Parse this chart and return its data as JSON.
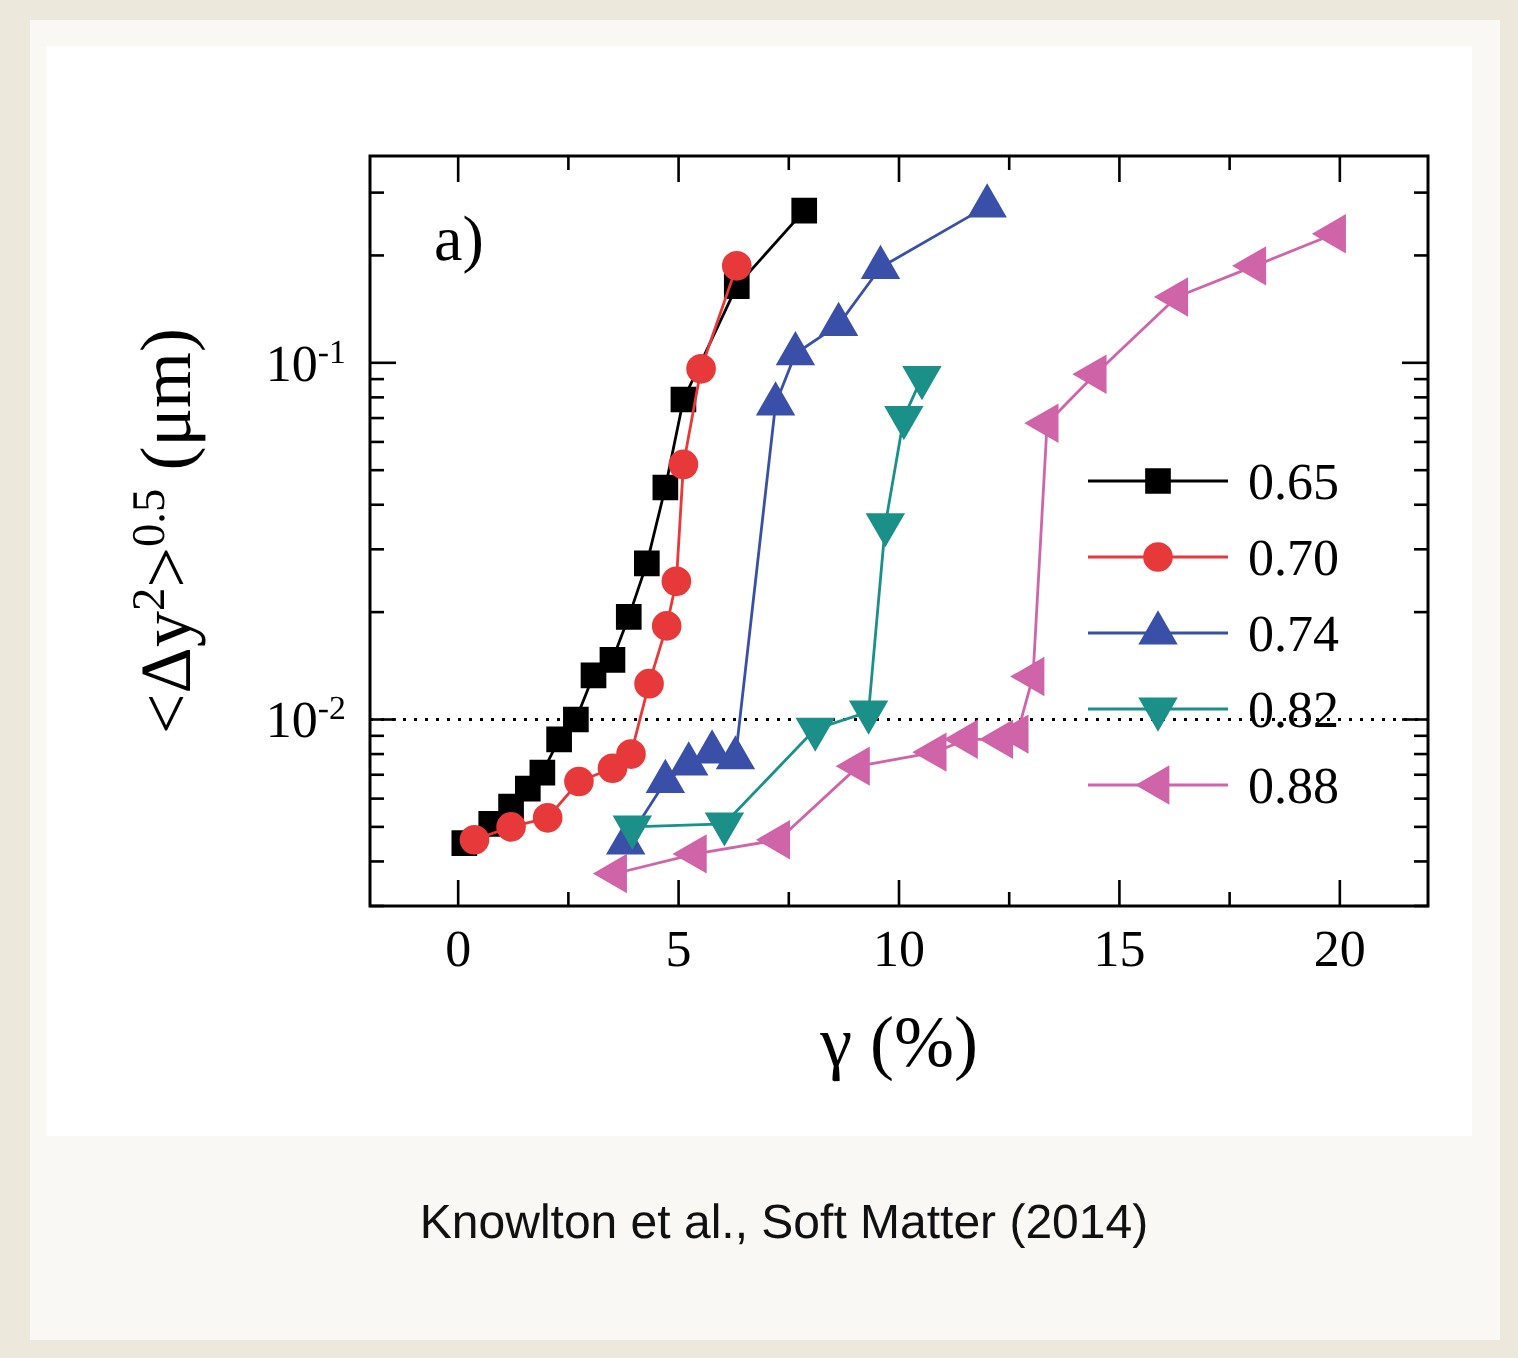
{
  "chart_data": {
    "type": "line",
    "xlabel": "γ (%)",
    "ylabel": "<Δy$^{2}$>$^{0.5}$ (μm)",
    "log": "y",
    "xlim": [
      -2,
      22
    ],
    "ylim": [
      0.003,
      0.38
    ],
    "xticks": [
      0,
      {
        "value": 2.5,
        "label": null
      },
      5,
      {
        "value": 7.5,
        "label": null
      },
      10,
      {
        "value": 12.5,
        "label": null
      },
      15,
      {
        "value": 17.5,
        "label": null
      },
      20
    ],
    "yticks": [
      {
        "value": 0.003,
        "label": null
      },
      {
        "value": 0.004,
        "label": null
      },
      {
        "value": 0.005,
        "label": null
      },
      {
        "value": 0.006,
        "label": null
      },
      {
        "value": 0.007,
        "label": null
      },
      {
        "value": 0.008,
        "label": null
      },
      {
        "value": 0.009,
        "label": null
      },
      {
        "value": 0.01,
        "label": "10$^{-2}$"
      },
      {
        "value": 0.02,
        "label": null
      },
      {
        "value": 0.03,
        "label": null
      },
      {
        "value": 0.04,
        "label": null
      },
      {
        "value": 0.05,
        "label": null
      },
      {
        "value": 0.06,
        "label": null
      },
      {
        "value": 0.07,
        "label": null
      },
      {
        "value": 0.08,
        "label": null
      },
      {
        "value": 0.09,
        "label": null
      },
      {
        "value": 0.1,
        "label": "10$^{-1}$"
      },
      {
        "value": 0.2,
        "label": null
      },
      {
        "value": 0.3,
        "label": null
      }
    ],
    "legend": "right",
    "line_style": "solid",
    "ref_lines": [
      {
        "axis": "y",
        "value": 0.01,
        "label": null,
        "color": "#000000",
        "line_style": "dotted"
      }
    ],
    "annotations": [
      "a)",
      "Knowlton et al., Soft Matter (2014)"
    ],
    "series": [
      {
        "name": "0.65",
        "color": "#000000",
        "marker": "square",
        "x": [
          0.14,
          0.75,
          1.2,
          1.58,
          1.91,
          2.29,
          2.67,
          3.07,
          3.5,
          3.87,
          4.28,
          4.7,
          5.11,
          6.32,
          7.85
        ],
        "values": [
          0.0045,
          0.0051,
          0.0057,
          0.0064,
          0.0071,
          0.0088,
          0.01,
          0.0133,
          0.0147,
          0.0194,
          0.0274,
          0.0447,
          0.0789,
          0.164,
          0.267
        ]
      },
      {
        "name": "0.70",
        "color": "#e8393a",
        "marker": "circle",
        "x": [
          0.37,
          1.2,
          2.03,
          2.74,
          3.5,
          3.92,
          4.33,
          4.73,
          4.95,
          5.11,
          5.51,
          6.32
        ],
        "values": [
          0.0046,
          0.005,
          0.0053,
          0.0067,
          0.0073,
          0.008,
          0.0126,
          0.0183,
          0.0244,
          0.0519,
          0.0962,
          0.187
        ]
      },
      {
        "name": "0.74",
        "color": "#3a50a8",
        "marker": "triangle",
        "x": [
          3.8,
          4.7,
          5.23,
          5.76,
          6.29,
          7.2,
          7.65,
          8.63,
          9.58,
          12.0
        ],
        "values": [
          0.0045,
          0.0067,
          0.0075,
          0.0081,
          0.0078,
          0.0766,
          0.106,
          0.128,
          0.185,
          0.275
        ]
      },
      {
        "name": "0.82",
        "color": "#1a9088",
        "marker": "triangle-down",
        "x": [
          3.95,
          6.04,
          8.1,
          9.31,
          9.69,
          10.11,
          10.52
        ],
        "values": [
          0.005,
          0.0051,
          0.0094,
          0.0105,
          0.0352,
          0.0703,
          0.091
        ]
      },
      {
        "name": "0.88",
        "color": "#d064a8",
        "marker": "triangle-left",
        "x": [
          3.57,
          5.38,
          7.27,
          9.08,
          10.82,
          11.53,
          12.33,
          12.68,
          13.04,
          13.36,
          14.45,
          16.3,
          18.07,
          19.88
        ],
        "values": [
          0.0037,
          0.0042,
          0.0046,
          0.0074,
          0.0081,
          0.0088,
          0.0088,
          0.0091,
          0.0132,
          0.0677,
          0.0929,
          0.153,
          0.187,
          0.23
        ]
      }
    ]
  }
}
